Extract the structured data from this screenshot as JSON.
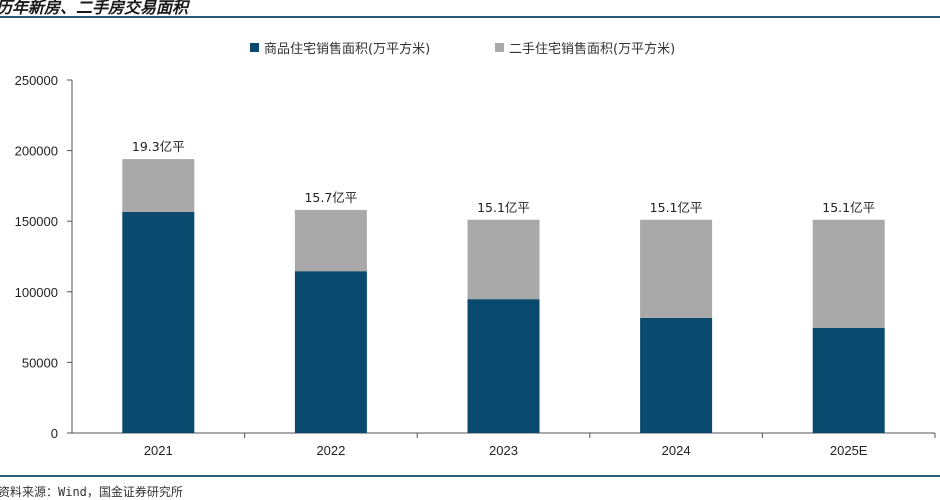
{
  "page": {
    "title": "历年新房、二手房交易面积",
    "source": "资料来源：Wind，国金证券研究所",
    "accent_color": "#2b5a78"
  },
  "chart_data": {
    "type": "bar",
    "stacked": true,
    "categories": [
      "2021",
      "2022",
      "2023",
      "2024",
      "2025E"
    ],
    "series": [
      {
        "name": "商品住宅销售面积(万平方米)",
        "color": "#0a4a6e",
        "values": [
          156500,
          114600,
          94800,
          81500,
          74500
        ]
      },
      {
        "name": "二手住宅销售面积(万平方米)",
        "color": "#a9a9a9",
        "values": [
          37500,
          43400,
          56200,
          69500,
          76500
        ]
      }
    ],
    "data_labels": [
      "19.3亿平",
      "15.7亿平",
      "15.1亿平",
      "15.1亿平",
      "15.1亿平"
    ],
    "y_ticks": [
      "0",
      "50000",
      "100000",
      "150000",
      "200000",
      "250000"
    ],
    "ylim": [
      0,
      250000
    ],
    "grid": false,
    "legend_position": "top"
  }
}
